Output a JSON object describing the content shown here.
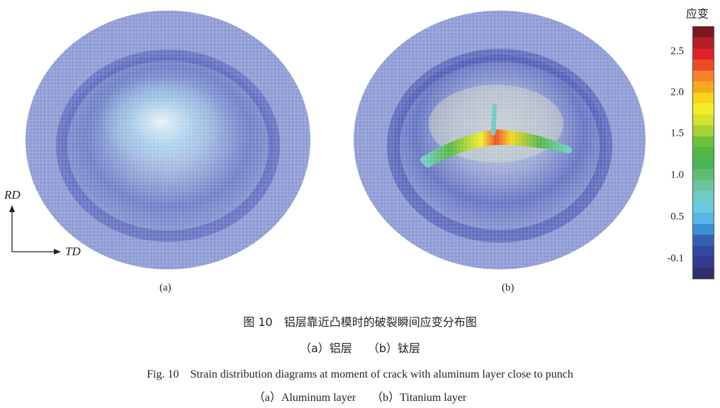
{
  "figure": {
    "panel_a_label": "(a)",
    "panel_b_label": "(b)",
    "axis_rd": "RD",
    "axis_td": "TD"
  },
  "legend": {
    "title": "应变",
    "ticks": [
      "2.5",
      "2.0",
      "1.5",
      "1.0",
      "0.5",
      "-0.1"
    ],
    "colors": [
      "#7a1a20",
      "#b51f2a",
      "#e51e2b",
      "#ee4a25",
      "#f5832a",
      "#f7a81e",
      "#f8d51c",
      "#f3ec2a",
      "#d9e02a",
      "#a8d233",
      "#6ec13a",
      "#52b745",
      "#49b454",
      "#5fbd72",
      "#6dc3a0",
      "#6fcbc4",
      "#68c9df",
      "#55b6e4",
      "#3e8fd0",
      "#3561b0",
      "#32489e",
      "#333c8e",
      "#2f2f6b"
    ]
  },
  "caption": {
    "cn_title": "图 10　铝层靠近凸模时的破裂瞬间应变分布图",
    "cn_sub_a": "（a）铝层",
    "cn_sub_b": "（b）钛层",
    "en_title": "Fig. 10　Strain distribution diagrams at moment of crack with aluminum layer close to punch",
    "en_sub_a": "（a）Aluminum layer",
    "en_sub_b": "（b）Titanium layer"
  }
}
